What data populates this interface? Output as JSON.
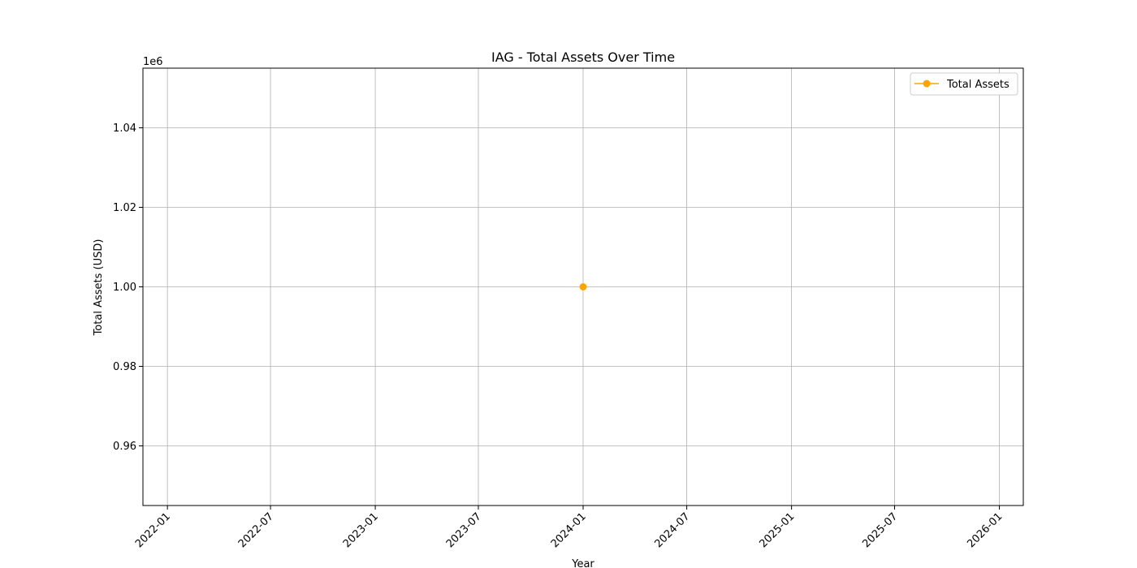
{
  "chart_data": {
    "type": "line",
    "title": "IAG - Total Assets Over Time",
    "xlabel": "Year",
    "ylabel": "Total Assets (USD)",
    "y_offset_label": "1e6",
    "x_ticks": [
      "2022-01",
      "2022-07",
      "2023-01",
      "2023-07",
      "2024-01",
      "2024-07",
      "2025-01",
      "2025-07",
      "2026-01"
    ],
    "y_ticks": [
      "0.96",
      "0.98",
      "1.00",
      "1.02",
      "1.04"
    ],
    "xlim": [
      "2021-11-19",
      "2026-02-12"
    ],
    "ylim": [
      945000,
      1055000
    ],
    "grid": true,
    "legend_position": "top-right",
    "series": [
      {
        "name": "Total Assets",
        "color": "#ffa500",
        "marker": "circle",
        "points": [
          {
            "x": "2024-01-01",
            "y": 1000000
          }
        ]
      }
    ]
  }
}
